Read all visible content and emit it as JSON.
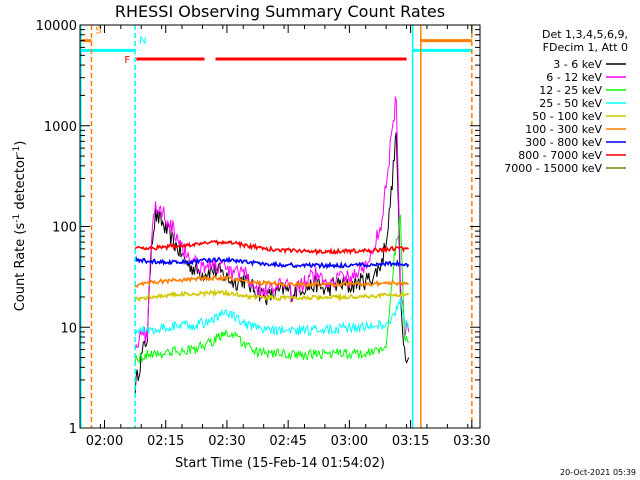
{
  "chart_data": {
    "type": "line",
    "title": "RHESSI Observing Summary Count Rates",
    "xlabel": "Start Time (15-Feb-14 01:54:02)",
    "ylabel_main": "Count Rate (s",
    "ylabel_sup1": "-1",
    "ylabel_mid": " detector",
    "ylabel_sup2": "-1",
    "ylabel_end": ")",
    "yscale": "log",
    "ylim": [
      1,
      10000
    ],
    "xlim_minutes": [
      114,
      212
    ],
    "x_ticks": [
      {
        "label": "02:00",
        "minute": 120
      },
      {
        "label": "02:15",
        "minute": 135
      },
      {
        "label": "02:30",
        "minute": 150
      },
      {
        "label": "02:45",
        "minute": 165
      },
      {
        "label": "03:00",
        "minute": 180
      },
      {
        "label": "03:15",
        "minute": 195
      },
      {
        "label": "03:30",
        "minute": 210
      }
    ],
    "y_ticks": [
      {
        "label": "1",
        "value": 1
      },
      {
        "label": "10",
        "value": 10
      },
      {
        "label": "100",
        "value": 100
      },
      {
        "label": "1000",
        "value": 1000
      },
      {
        "label": "10000",
        "value": 10000
      }
    ],
    "legend_header": [
      "Det 1,3,4,5,6,9,",
      "FDecim 1, Att 0"
    ],
    "legend_placement": "right",
    "series": [
      {
        "name": "3 - 6 keV",
        "color": "#000000",
        "x": [
          127.5,
          128.5,
          129.5,
          130.5,
          131.5,
          132.5,
          134,
          136,
          138,
          140,
          142,
          144,
          146,
          148,
          150,
          152,
          154,
          156,
          158,
          160,
          162,
          164,
          166,
          168,
          170,
          172,
          174,
          176,
          178,
          180,
          182,
          184,
          186,
          188,
          189.5,
          190.5,
          191.5,
          192.5,
          193.5,
          194.5
        ],
        "values": [
          2.5,
          4,
          6,
          8,
          70,
          130,
          110,
          80,
          60,
          45,
          38,
          34,
          37,
          36,
          31,
          28,
          30,
          25,
          22,
          20,
          22,
          24,
          22,
          25,
          25,
          27,
          23,
          26,
          27,
          25,
          28,
          29,
          32,
          45,
          100,
          280,
          900,
          20,
          6,
          5
        ]
      },
      {
        "name": "6 - 12 keV",
        "color": "#ff00ff",
        "x": [
          127.5,
          128.5,
          129.5,
          130.5,
          131.5,
          132.5,
          134,
          136,
          138,
          140,
          142,
          144,
          146,
          148,
          150,
          152,
          154,
          156,
          158,
          160,
          162,
          164,
          166,
          168,
          170,
          172,
          174,
          176,
          178,
          180,
          182,
          184,
          186,
          188,
          190,
          191.5,
          192.5,
          193.5,
          194.5
        ],
        "values": [
          7,
          7.5,
          8,
          9,
          80,
          160,
          140,
          110,
          80,
          55,
          45,
          40,
          42,
          40,
          36,
          33,
          35,
          28,
          24,
          22,
          24,
          26,
          22,
          28,
          30,
          34,
          28,
          30,
          32,
          30,
          36,
          40,
          60,
          120,
          600,
          2000,
          30,
          10,
          9
        ]
      },
      {
        "name": "12 - 25 keV",
        "color": "#00ff00",
        "x": [
          127.5,
          131.5,
          134,
          138,
          142,
          146,
          148,
          150,
          152,
          154,
          156,
          158,
          162,
          166,
          170,
          174,
          178,
          182,
          186,
          189,
          191,
          192.5,
          193.5,
          194.5
        ],
        "values": [
          4.8,
          5.5,
          5.5,
          5.8,
          6.0,
          7.0,
          8.0,
          9.0,
          8.0,
          7.0,
          6.0,
          5.5,
          5.5,
          5.3,
          5.3,
          5.5,
          5.5,
          5.5,
          5.6,
          6.5,
          50,
          120,
          8,
          7
        ]
      },
      {
        "name": "25 - 50 keV",
        "color": "#00ffff",
        "x": [
          127.5,
          131.5,
          134,
          138,
          142,
          146,
          148,
          150,
          152,
          154,
          156,
          158,
          162,
          166,
          170,
          174,
          178,
          182,
          186,
          189,
          191,
          192.5,
          193.5,
          194.5
        ],
        "values": [
          9,
          9.5,
          10,
          10.3,
          10.5,
          11.5,
          13,
          14,
          12.5,
          11,
          10,
          9.5,
          9.3,
          9.3,
          9.3,
          9.5,
          9.7,
          10,
          10.2,
          11,
          13,
          20,
          11,
          10.5
        ]
      },
      {
        "name": "50 - 100 keV",
        "color": "#d2c800",
        "x": [
          127.5,
          131.5,
          136,
          142,
          148,
          152,
          156,
          162,
          168,
          174,
          180,
          186,
          190,
          194.5
        ],
        "values": [
          19,
          20,
          21,
          21.5,
          22,
          21.5,
          20,
          19.5,
          19.5,
          19.8,
          20,
          20.5,
          21,
          21
        ]
      },
      {
        "name": "100 - 300 keV",
        "color": "#ff8000",
        "x": [
          127.5,
          131.5,
          136,
          142,
          148,
          152,
          156,
          162,
          168,
          174,
          180,
          186,
          190,
          194.5
        ],
        "values": [
          26,
          28,
          29,
          30,
          31,
          30,
          28,
          27,
          26.5,
          26.5,
          27,
          27,
          27.5,
          27
        ]
      },
      {
        "name": "300 - 800 keV",
        "color": "#0000ff",
        "x": [
          127.5,
          131.5,
          136,
          142,
          148,
          152,
          156,
          162,
          168,
          174,
          180,
          186,
          190,
          194.5
        ],
        "values": [
          47,
          45,
          44,
          45,
          47,
          46,
          44,
          42,
          41,
          41,
          41,
          42,
          43,
          42
        ]
      },
      {
        "name": "800 - 7000 keV",
        "color": "#ff0000",
        "x": [
          127.5,
          131.5,
          136,
          142,
          148,
          152,
          156,
          162,
          168,
          174,
          180,
          186,
          190,
          194.5
        ],
        "values": [
          62,
          61,
          63,
          66,
          70,
          68,
          63,
          59,
          57,
          56,
          57,
          58,
          60,
          60
        ]
      },
      {
        "name": "7000 - 15000 keV",
        "color": "#808000",
        "x": [],
        "values": []
      }
    ],
    "flags": [
      {
        "label": "S",
        "color": "#ff8000",
        "x_range": [
          114,
          116.8
        ],
        "value": 7000
      },
      {
        "label": "N",
        "color": "#00ffff",
        "x_range": [
          114,
          127.5
        ],
        "value": 5600
      },
      {
        "label": "N",
        "color": "#00ffff",
        "x_range": [
          195.5,
          210
        ],
        "value": 5600
      },
      {
        "label": "F",
        "color": "#ff0000",
        "x_range": [
          127.8,
          144.5
        ],
        "value": 4600
      },
      {
        "label": "F",
        "color": "#ff0000",
        "x_range": [
          147.2,
          194
        ],
        "value": 4600
      },
      {
        "label": "",
        "color": "#ff8000",
        "x_range": [
          197.5,
          210
        ],
        "value": 7000
      }
    ],
    "vlines": [
      {
        "minute": 114.2,
        "color": "#00ffff",
        "dash": false
      },
      {
        "minute": 116.8,
        "color": "#ff8000",
        "dash": true
      },
      {
        "minute": 127.5,
        "color": "#00ffff",
        "dash": true
      },
      {
        "minute": 195.5,
        "color": "#00ffff",
        "dash": false
      },
      {
        "minute": 197.5,
        "color": "#ff8000",
        "dash": false
      },
      {
        "minute": 210.0,
        "color": "#ff8000",
        "dash": true
      }
    ],
    "grid": false
  },
  "footer": {
    "date": "20-Oct-2021 05:39"
  }
}
